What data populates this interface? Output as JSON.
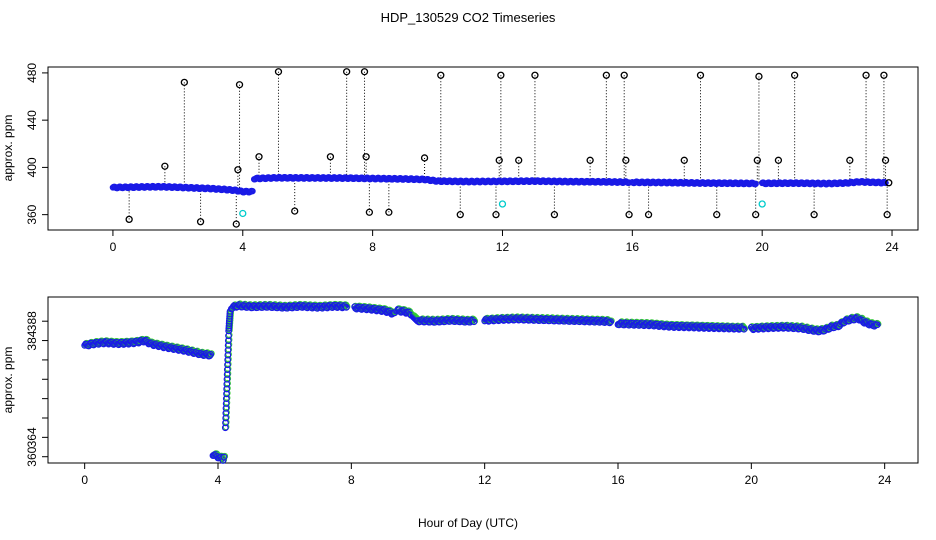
{
  "chart_data": [
    {
      "type": "scatter",
      "panel": "top",
      "title": "HDP_130529  CO2 Timeseries",
      "xlabel": "",
      "ylabel": "approx. ppm",
      "xlim": [
        -2,
        24.8
      ],
      "ylim": [
        347,
        485
      ],
      "xticks": [
        0,
        4,
        8,
        12,
        16,
        20,
        24
      ],
      "yticks": [
        360,
        400,
        440,
        480
      ],
      "grid": false,
      "legend": "none",
      "colors": {
        "dense": "#1a1ae6",
        "outlier": "#000000",
        "cyan": "#00cccc"
      },
      "baseline_segments": [
        {
          "x": [
            0.0,
            0.5,
            1.0,
            1.5,
            2.0,
            2.5,
            3.0,
            3.5,
            3.8,
            4.0,
            4.3
          ],
          "y": [
            383,
            383.2,
            383.5,
            383.6,
            383.2,
            382.6,
            382.1,
            381.2,
            380.5,
            379.5,
            379.5
          ]
        },
        {
          "x": [
            4.35,
            5.0,
            6.0,
            7.0,
            7.6,
            8.0,
            9.0,
            9.6,
            10.0,
            11.0,
            12.0,
            13.0,
            14.0,
            15.0,
            15.9
          ],
          "y": [
            390.5,
            391.2,
            391.1,
            391.0,
            390.8,
            390.6,
            390.2,
            389.8,
            388.4,
            388.0,
            388.2,
            388.4,
            388.0,
            387.8,
            387.5
          ]
        },
        {
          "x": [
            16.0,
            17.0,
            18.0,
            19.0,
            19.8
          ],
          "y": [
            387.4,
            387.2,
            386.8,
            386.6,
            386.4
          ]
        },
        {
          "x": [
            20.0,
            21.0,
            22.0,
            22.6,
            23.0,
            23.4,
            23.8
          ],
          "y": [
            386.5,
            386.7,
            386.3,
            386.8,
            387.8,
            387.4,
            387.0
          ]
        }
      ],
      "outliers": [
        {
          "x": 0.5,
          "y": 356
        },
        {
          "x": 1.6,
          "y": 401
        },
        {
          "x": 2.2,
          "y": 472
        },
        {
          "x": 2.7,
          "y": 354
        },
        {
          "x": 3.8,
          "y": 352
        },
        {
          "x": 3.85,
          "y": 398
        },
        {
          "x": 3.9,
          "y": 470
        },
        {
          "x": 4.5,
          "y": 409
        },
        {
          "x": 5.1,
          "y": 481
        },
        {
          "x": 5.6,
          "y": 363
        },
        {
          "x": 6.7,
          "y": 409
        },
        {
          "x": 7.2,
          "y": 481
        },
        {
          "x": 7.75,
          "y": 481
        },
        {
          "x": 7.8,
          "y": 409
        },
        {
          "x": 7.9,
          "y": 362
        },
        {
          "x": 8.5,
          "y": 362
        },
        {
          "x": 9.6,
          "y": 408
        },
        {
          "x": 10.1,
          "y": 478
        },
        {
          "x": 10.7,
          "y": 360
        },
        {
          "x": 11.8,
          "y": 360
        },
        {
          "x": 11.9,
          "y": 406
        },
        {
          "x": 11.95,
          "y": 478
        },
        {
          "x": 12.5,
          "y": 406
        },
        {
          "x": 13.0,
          "y": 478
        },
        {
          "x": 13.6,
          "y": 360
        },
        {
          "x": 14.7,
          "y": 406
        },
        {
          "x": 15.2,
          "y": 478
        },
        {
          "x": 15.75,
          "y": 478
        },
        {
          "x": 15.8,
          "y": 406
        },
        {
          "x": 15.9,
          "y": 360
        },
        {
          "x": 16.5,
          "y": 360
        },
        {
          "x": 17.6,
          "y": 406
        },
        {
          "x": 18.1,
          "y": 478
        },
        {
          "x": 18.6,
          "y": 360
        },
        {
          "x": 19.8,
          "y": 360
        },
        {
          "x": 19.85,
          "y": 406
        },
        {
          "x": 19.9,
          "y": 477
        },
        {
          "x": 20.5,
          "y": 406
        },
        {
          "x": 21.0,
          "y": 478
        },
        {
          "x": 21.6,
          "y": 360
        },
        {
          "x": 22.7,
          "y": 406
        },
        {
          "x": 23.2,
          "y": 478
        },
        {
          "x": 23.75,
          "y": 478
        },
        {
          "x": 23.8,
          "y": 406
        },
        {
          "x": 23.85,
          "y": 360
        },
        {
          "x": 23.9,
          "y": 387
        }
      ],
      "cyan_points": [
        {
          "x": 4.0,
          "y": 361
        },
        {
          "x": 12.0,
          "y": 369
        },
        {
          "x": 20.0,
          "y": 369
        }
      ]
    },
    {
      "type": "scatter",
      "panel": "bottom",
      "xlabel": "Hour of Day (UTC)",
      "ylabel": "approx. ppm",
      "xlim": [
        -1.1,
        25.0
      ],
      "ylim": [
        358.7,
        393.0
      ],
      "xticks": [
        0,
        4,
        8,
        12,
        16,
        20,
        24
      ],
      "yticks": [
        360,
        364,
        368,
        372,
        376,
        380,
        384,
        388
      ],
      "ytick_labels": [
        "360",
        "364",
        "",
        "",
        "",
        "",
        "384",
        "388"
      ],
      "grid": false,
      "legend": "none",
      "colors": {
        "points": "#1a1ae6",
        "highlight": "#33cc33"
      },
      "segments": [
        {
          "x": [
            0.0,
            0.3,
            0.6,
            1.0,
            1.5,
            1.8,
            2.0,
            2.5,
            3.0,
            3.5,
            3.8
          ],
          "y": [
            383,
            383.4,
            383.6,
            383.4,
            383.6,
            384.0,
            383.3,
            382.6,
            382.0,
            381.2,
            381.0
          ]
        },
        {
          "x": [
            3.85,
            4.0,
            4.15,
            4.2
          ],
          "y": [
            360.5,
            360.0,
            359.5,
            360.5
          ]
        },
        {
          "x": [
            4.22,
            4.28,
            4.32,
            4.36
          ],
          "y": [
            366.0,
            378.0,
            386.0,
            390.0
          ]
        },
        {
          "x": [
            4.4,
            4.6,
            5.0,
            5.5,
            6.0,
            6.5,
            7.0,
            7.5,
            7.85
          ],
          "y": [
            390.8,
            391.2,
            391.0,
            391.1,
            390.9,
            391.1,
            390.9,
            391.1,
            391.0
          ]
        },
        {
          "x": [
            8.1,
            8.5,
            9.0,
            9.3
          ],
          "y": [
            390.8,
            390.6,
            390.2,
            389.5
          ]
        },
        {
          "x": [
            9.4,
            9.6,
            9.8
          ],
          "y": [
            390.2,
            390.0,
            389.5
          ]
        },
        {
          "x": [
            9.85,
            10.0
          ],
          "y": [
            389.0,
            388.0
          ]
        },
        {
          "x": [
            10.0,
            10.5,
            11.0,
            11.5,
            11.7
          ],
          "y": [
            388.1,
            388.0,
            388.2,
            388.0,
            388.1
          ]
        },
        {
          "x": [
            12.0,
            12.5,
            13.0,
            13.5,
            14.0,
            14.5,
            15.0,
            15.5,
            15.8
          ],
          "y": [
            388.2,
            388.4,
            388.5,
            388.4,
            388.3,
            388.2,
            388.1,
            388.0,
            387.9
          ]
        },
        {
          "x": [
            16.0,
            16.5,
            17.0,
            17.5,
            18.0,
            18.5,
            19.0,
            19.5,
            19.8
          ],
          "y": [
            387.5,
            387.4,
            387.3,
            387.0,
            386.9,
            386.8,
            386.7,
            386.6,
            386.6
          ]
        },
        {
          "x": [
            20.0,
            20.5,
            21.0,
            21.5,
            21.8,
            22.0,
            22.2,
            22.4,
            22.6,
            22.8,
            23.0,
            23.2,
            23.4,
            23.6,
            23.8
          ],
          "y": [
            386.5,
            386.7,
            386.8,
            386.6,
            386.2,
            386.0,
            386.2,
            386.8,
            387.0,
            388.0,
            388.4,
            388.6,
            387.8,
            387.3,
            387.1
          ]
        }
      ]
    }
  ]
}
